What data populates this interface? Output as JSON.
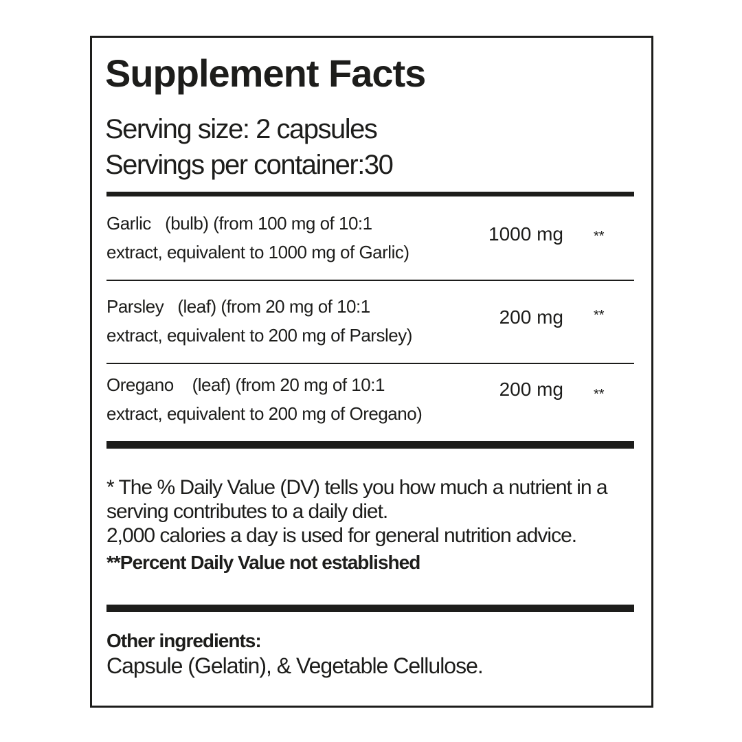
{
  "title": "Supplement Facts",
  "serving_size": "Serving size: 2 capsules",
  "servings_per_container": "Servings per container:30",
  "ingredients": [
    {
      "line1": "Garlic   (bulb) (from 100 mg of 10:1",
      "line2": "extract, equivalent to 1000 mg of Garlic)",
      "amount": "1000 mg",
      "dv": "**"
    },
    {
      "line1": "Parsley   (leaf) (from 20 mg of 10:1",
      "line2": "extract, equivalent to 200 mg of Parsley)",
      "amount": "200 mg",
      "dv": "**"
    },
    {
      "line1": "Oregano    (leaf) (from 20 mg of 10:1",
      "line2": "extract, equivalent to 200 mg of Oregano)",
      "amount": "200 mg",
      "dv": "**"
    }
  ],
  "footnote": {
    "line1": "* The % Daily Value (DV) tells you how much a nutrient in a",
    "line2": "serving contributes to a daily diet.",
    "line3": "2,000 calories a day is used for general nutrition advice.",
    "line4": "**Percent Daily Value not established"
  },
  "other": {
    "heading": "Other  ingredients:",
    "text": "Capsule (Gelatin), & Vegetable Cellulose."
  }
}
